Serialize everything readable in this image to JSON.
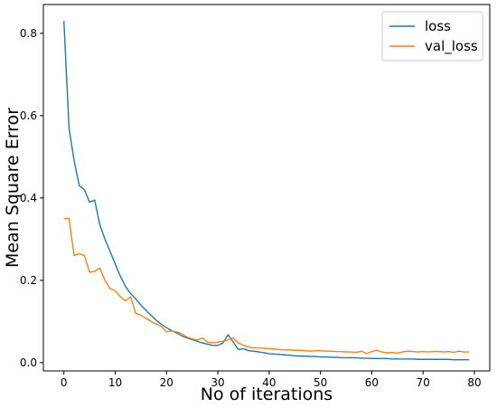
{
  "chart_data": {
    "type": "line",
    "title": "",
    "xlabel": "No of iterations",
    "ylabel": "Mean Square Error",
    "xlim": [
      -4,
      83
    ],
    "ylim": [
      -0.02,
      0.87
    ],
    "xticks": [
      0,
      10,
      20,
      30,
      40,
      50,
      60,
      70,
      80
    ],
    "yticks": [
      0.0,
      0.2,
      0.4,
      0.6,
      0.8
    ],
    "grid": false,
    "legend": "top-right",
    "series": [
      {
        "name": "loss",
        "color": "#1f77b4",
        "x": [
          0,
          1,
          2,
          3,
          4,
          5,
          6,
          7,
          8,
          9,
          10,
          11,
          12,
          13,
          14,
          15,
          16,
          17,
          18,
          19,
          20,
          21,
          22,
          23,
          24,
          25,
          26,
          27,
          28,
          29,
          30,
          31,
          32,
          33,
          34,
          35,
          36,
          37,
          38,
          39,
          40,
          41,
          42,
          43,
          44,
          45,
          46,
          47,
          48,
          49,
          50,
          51,
          52,
          53,
          54,
          55,
          56,
          57,
          58,
          59,
          60,
          61,
          62,
          63,
          64,
          65,
          66,
          67,
          68,
          69,
          70,
          71,
          72,
          73,
          74,
          75,
          76,
          77,
          78,
          79
        ],
        "values": [
          0.83,
          0.57,
          0.49,
          0.43,
          0.42,
          0.39,
          0.395,
          0.335,
          0.3,
          0.27,
          0.24,
          0.21,
          0.185,
          0.168,
          0.155,
          0.14,
          0.127,
          0.115,
          0.103,
          0.093,
          0.085,
          0.078,
          0.072,
          0.065,
          0.06,
          0.056,
          0.052,
          0.048,
          0.045,
          0.042,
          0.042,
          0.048,
          0.068,
          0.05,
          0.032,
          0.034,
          0.029,
          0.028,
          0.026,
          0.024,
          0.022,
          0.021,
          0.02,
          0.019,
          0.018,
          0.017,
          0.016,
          0.016,
          0.015,
          0.015,
          0.014,
          0.014,
          0.013,
          0.013,
          0.012,
          0.012,
          0.012,
          0.012,
          0.011,
          0.011,
          0.01,
          0.01,
          0.01,
          0.01,
          0.009,
          0.009,
          0.009,
          0.009,
          0.009,
          0.008,
          0.008,
          0.008,
          0.008,
          0.008,
          0.008,
          0.008,
          0.007,
          0.007,
          0.007,
          0.007
        ]
      },
      {
        "name": "val_loss",
        "color": "#ff7f0e",
        "x": [
          0,
          1,
          2,
          3,
          4,
          5,
          6,
          7,
          8,
          9,
          10,
          11,
          12,
          13,
          14,
          15,
          16,
          17,
          18,
          19,
          20,
          21,
          22,
          23,
          24,
          25,
          26,
          27,
          28,
          29,
          30,
          31,
          32,
          33,
          34,
          35,
          36,
          37,
          38,
          39,
          40,
          41,
          42,
          43,
          44,
          45,
          46,
          47,
          48,
          49,
          50,
          51,
          52,
          53,
          54,
          55,
          56,
          57,
          58,
          59,
          60,
          61,
          62,
          63,
          64,
          65,
          66,
          67,
          68,
          69,
          70,
          71,
          72,
          73,
          74,
          75,
          76,
          77,
          78,
          79
        ],
        "values": [
          0.35,
          0.35,
          0.26,
          0.265,
          0.26,
          0.22,
          0.222,
          0.23,
          0.2,
          0.18,
          0.175,
          0.16,
          0.15,
          0.16,
          0.12,
          0.115,
          0.108,
          0.1,
          0.094,
          0.088,
          0.075,
          0.077,
          0.075,
          0.07,
          0.062,
          0.058,
          0.055,
          0.06,
          0.05,
          0.048,
          0.05,
          0.052,
          0.055,
          0.06,
          0.048,
          0.042,
          0.038,
          0.036,
          0.036,
          0.035,
          0.034,
          0.033,
          0.032,
          0.031,
          0.031,
          0.03,
          0.03,
          0.029,
          0.028,
          0.029,
          0.029,
          0.028,
          0.028,
          0.027,
          0.027,
          0.026,
          0.026,
          0.025,
          0.028,
          0.022,
          0.027,
          0.03,
          0.026,
          0.024,
          0.025,
          0.023,
          0.026,
          0.028,
          0.027,
          0.026,
          0.027,
          0.026,
          0.027,
          0.027,
          0.026,
          0.027,
          0.025,
          0.028,
          0.026,
          0.026
        ]
      }
    ]
  }
}
